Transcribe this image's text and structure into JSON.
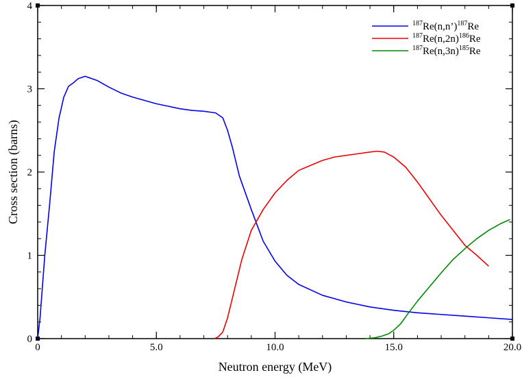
{
  "chart_data": {
    "type": "line",
    "title": "",
    "xlabel": "Neutron energy (MeV)",
    "ylabel": "Cross section (barns)",
    "xlim": [
      0,
      20
    ],
    "ylim": [
      0,
      4
    ],
    "x_ticks": [
      {
        "value": 0,
        "label": "0"
      },
      {
        "value": 5,
        "label": "5.0"
      },
      {
        "value": 10,
        "label": "10.0"
      },
      {
        "value": 15,
        "label": "15.0"
      },
      {
        "value": 20,
        "label": "20.0"
      }
    ],
    "y_ticks": [
      {
        "value": 0,
        "label": "0"
      },
      {
        "value": 1,
        "label": "1"
      },
      {
        "value": 2,
        "label": "2"
      },
      {
        "value": 3,
        "label": "3"
      },
      {
        "value": 4,
        "label": "4"
      }
    ],
    "x_minor_step": 1,
    "y_minor_step": 0.2,
    "grid": false,
    "legend_position": "top-right",
    "series": [
      {
        "name_parts": {
          "pre_sup": "187",
          "main": "Re(n,n’)",
          "post_sup": "187",
          "tail": "Re"
        },
        "color": "#0000ee",
        "x": [
          0.0,
          0.1,
          0.3,
          0.5,
          0.7,
          0.9,
          1.1,
          1.3,
          1.5,
          1.7,
          2.0,
          2.5,
          3.0,
          3.5,
          4.0,
          4.5,
          5.0,
          5.5,
          6.0,
          6.5,
          7.0,
          7.5,
          7.8,
          8.0,
          8.2,
          8.5,
          9.0,
          9.5,
          10.0,
          10.5,
          11.0,
          12.0,
          13.0,
          14.0,
          15.0,
          16.0,
          17.0,
          18.0,
          19.0,
          20.0
        ],
        "y": [
          0.0,
          0.25,
          1.0,
          1.6,
          2.25,
          2.65,
          2.9,
          3.03,
          3.07,
          3.12,
          3.15,
          3.1,
          3.02,
          2.95,
          2.9,
          2.86,
          2.82,
          2.79,
          2.76,
          2.74,
          2.73,
          2.71,
          2.65,
          2.5,
          2.3,
          1.95,
          1.55,
          1.17,
          0.93,
          0.76,
          0.65,
          0.52,
          0.44,
          0.38,
          0.34,
          0.31,
          0.29,
          0.27,
          0.25,
          0.23
        ]
      },
      {
        "name_parts": {
          "pre_sup": "187",
          "main": "Re(n,2n)",
          "post_sup": "186",
          "tail": "Re"
        },
        "color": "#ee0000",
        "x": [
          7.45,
          7.6,
          7.8,
          8.0,
          8.3,
          8.6,
          9.0,
          9.5,
          10.0,
          10.5,
          11.0,
          11.5,
          12.0,
          12.5,
          13.0,
          13.5,
          14.0,
          14.3,
          14.6,
          15.0,
          15.5,
          16.0,
          16.5,
          17.0,
          17.5,
          18.0,
          18.5,
          19.0
        ],
        "y": [
          0.0,
          0.02,
          0.08,
          0.25,
          0.6,
          0.95,
          1.3,
          1.55,
          1.75,
          1.9,
          2.02,
          2.08,
          2.14,
          2.18,
          2.2,
          2.22,
          2.24,
          2.25,
          2.24,
          2.18,
          2.06,
          1.88,
          1.68,
          1.48,
          1.3,
          1.12,
          1.0,
          0.87
        ]
      },
      {
        "name_parts": {
          "pre_sup": "187",
          "main": "Re(n,3n)",
          "post_sup": "185",
          "tail": "Re"
        },
        "color": "#008800",
        "x": [
          13.8,
          14.2,
          14.5,
          14.8,
          15.0,
          15.3,
          15.6,
          16.0,
          16.5,
          17.0,
          17.5,
          18.0,
          18.5,
          19.0,
          19.5,
          19.9
        ],
        "y": [
          0.0,
          0.01,
          0.03,
          0.06,
          0.1,
          0.18,
          0.3,
          0.45,
          0.62,
          0.79,
          0.95,
          1.08,
          1.2,
          1.3,
          1.38,
          1.43
        ]
      }
    ]
  }
}
